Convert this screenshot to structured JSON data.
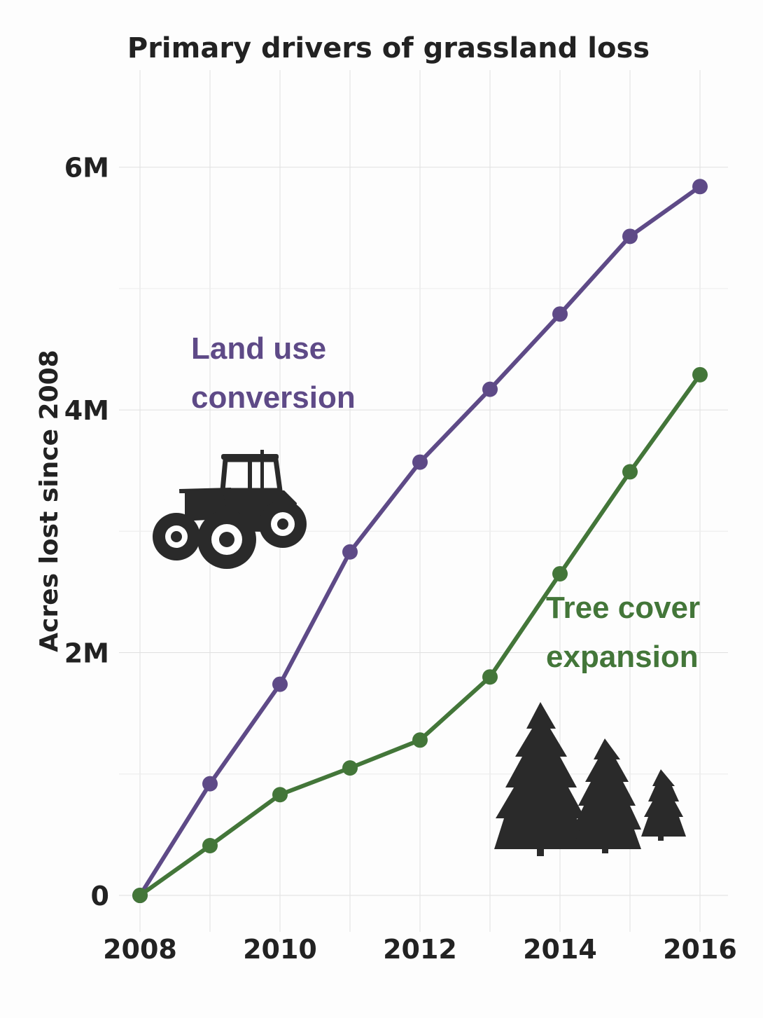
{
  "chart_data": {
    "type": "line",
    "title": "Primary drivers of grassland loss",
    "ylabel": "Acres lost since 2008",
    "xlabel": "",
    "x": [
      2008,
      2009,
      2010,
      2011,
      2012,
      2013,
      2014,
      2015,
      2016
    ],
    "x_ticks": [
      "2008",
      "2010",
      "2012",
      "2014",
      "2016"
    ],
    "y_ticks": [
      "0",
      "2M",
      "4M",
      "6M"
    ],
    "ylim": [
      -300000,
      6800000
    ],
    "grid": true,
    "series": [
      {
        "name": "Land use conversion",
        "color": "#5e4a87",
        "icon": "tractor-icon",
        "values": [
          0,
          920000,
          1740000,
          2830000,
          3570000,
          4170000,
          4790000,
          5430000,
          5840000
        ]
      },
      {
        "name": "Tree cover expansion",
        "color": "#437639",
        "icon": "pine-trees-icon",
        "values": [
          0,
          410000,
          830000,
          1050000,
          1280000,
          1800000,
          2650000,
          3490000,
          4290000
        ]
      }
    ],
    "labels": [
      {
        "series": 0,
        "lines": [
          "Land use",
          "conversion"
        ]
      },
      {
        "series": 1,
        "lines": [
          "Tree cover",
          "expansion"
        ]
      }
    ]
  }
}
